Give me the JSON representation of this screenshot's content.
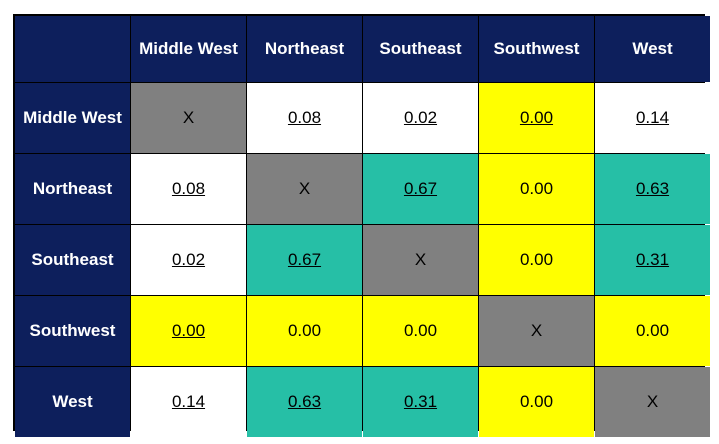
{
  "chart_data": {
    "type": "heatmap",
    "row_labels": [
      "Middle West",
      "Northeast",
      "Southeast",
      "Southwest",
      "West"
    ],
    "col_labels": [
      "Middle West",
      "Northeast",
      "Southeast",
      "Southwest",
      "West"
    ],
    "cells": [
      [
        {
          "text": "X",
          "fill": "#808080",
          "underline": false
        },
        {
          "text": "0.08",
          "fill": "#ffffff",
          "underline": true
        },
        {
          "text": "0.02",
          "fill": "#ffffff",
          "underline": true
        },
        {
          "text": "0.00",
          "fill": "#ffff00",
          "underline": true
        },
        {
          "text": "0.14",
          "fill": "#ffffff",
          "underline": true
        }
      ],
      [
        {
          "text": "0.08",
          "fill": "#ffffff",
          "underline": true
        },
        {
          "text": "X",
          "fill": "#808080",
          "underline": false
        },
        {
          "text": "0.67",
          "fill": "#26bfa6",
          "underline": true
        },
        {
          "text": "0.00",
          "fill": "#ffff00",
          "underline": false
        },
        {
          "text": "0.63",
          "fill": "#26bfa6",
          "underline": true
        }
      ],
      [
        {
          "text": "0.02",
          "fill": "#ffffff",
          "underline": true
        },
        {
          "text": "0.67",
          "fill": "#26bfa6",
          "underline": true
        },
        {
          "text": "X",
          "fill": "#808080",
          "underline": false
        },
        {
          "text": "0.00",
          "fill": "#ffff00",
          "underline": false
        },
        {
          "text": "0.31",
          "fill": "#26bfa6",
          "underline": true
        }
      ],
      [
        {
          "text": "0.00",
          "fill": "#ffff00",
          "underline": true
        },
        {
          "text": "0.00",
          "fill": "#ffff00",
          "underline": false
        },
        {
          "text": "0.00",
          "fill": "#ffff00",
          "underline": false
        },
        {
          "text": "X",
          "fill": "#808080",
          "underline": false
        },
        {
          "text": "0.00",
          "fill": "#ffff00",
          "underline": false
        }
      ],
      [
        {
          "text": "0.14",
          "fill": "#ffffff",
          "underline": true
        },
        {
          "text": "0.63",
          "fill": "#26bfa6",
          "underline": true
        },
        {
          "text": "0.31",
          "fill": "#26bfa6",
          "underline": true
        },
        {
          "text": "0.00",
          "fill": "#ffff00",
          "underline": false
        },
        {
          "text": "X",
          "fill": "#808080",
          "underline": false
        }
      ]
    ],
    "colors": {
      "header": "#0d1f5c",
      "header_text": "#ffffff",
      "diagonal": "#808080",
      "teal": "#26bfa6",
      "yellow": "#ffff00",
      "white": "#ffffff"
    }
  }
}
